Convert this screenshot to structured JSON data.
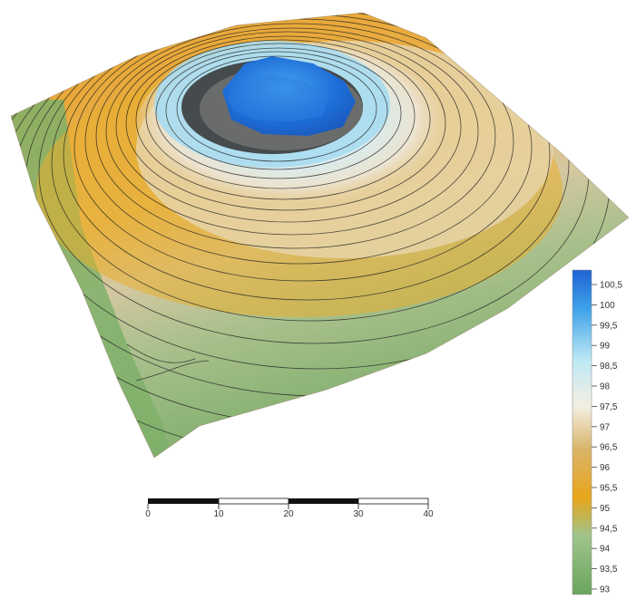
{
  "legend": {
    "ticks": [
      "100,5",
      "100",
      "99,5",
      "99",
      "98,5",
      "98",
      "97,5",
      "97",
      "96,5",
      "96",
      "95,5",
      "95",
      "94,5",
      "94",
      "93,5",
      "93"
    ],
    "colors": [
      "#1f63d4",
      "#3fa2e8",
      "#bfe9f5",
      "#f3efe2",
      "#d9b56b",
      "#e8a51b",
      "#9fc48b",
      "#6aa55d"
    ]
  },
  "scale_bar": {
    "labels": [
      "0",
      "10",
      "20",
      "30",
      "40"
    ]
  }
}
